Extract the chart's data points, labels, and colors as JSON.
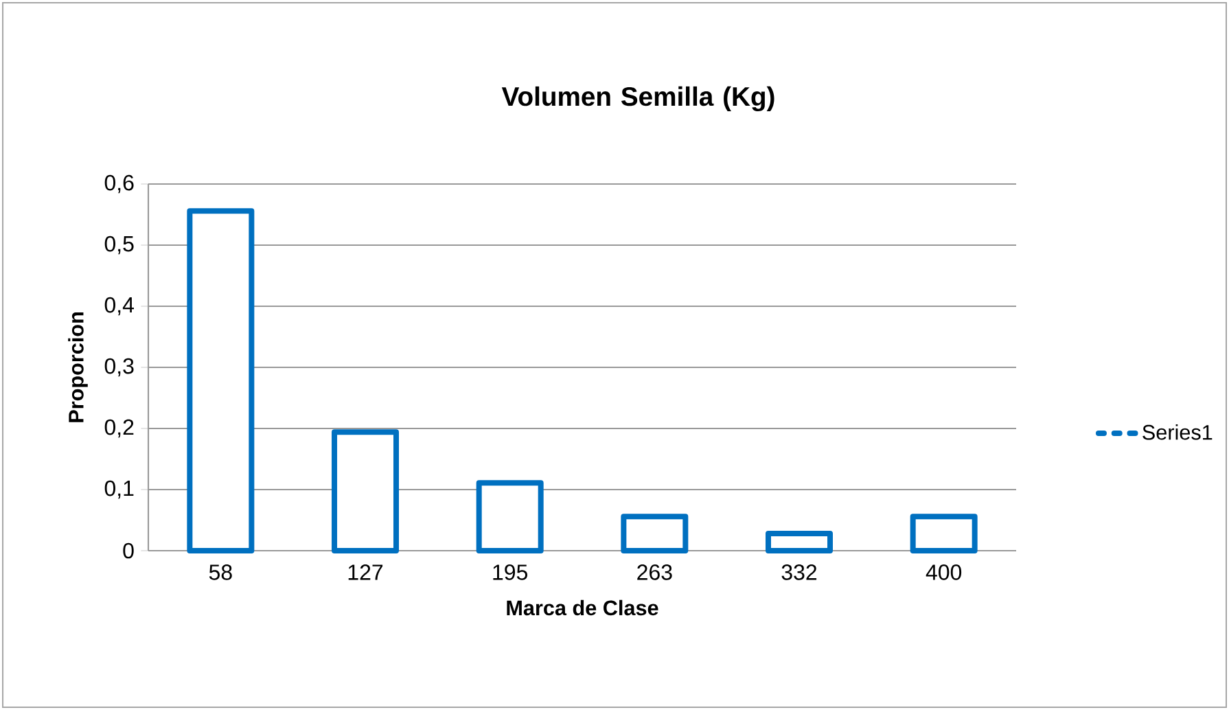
{
  "chart_data": {
    "type": "bar",
    "title": "Volumen Semilla (Kg)",
    "xlabel": "Marca de Clase",
    "ylabel": "Proporcion",
    "categories": [
      "58",
      "127",
      "195",
      "263",
      "332",
      "400"
    ],
    "series": [
      {
        "name": "Series1",
        "color": "#0070c0",
        "values": [
          0.556,
          0.194,
          0.111,
          0.056,
          0.028,
          0.056
        ]
      }
    ],
    "ylim": [
      0,
      0.6
    ],
    "yticks": [
      {
        "value": 0,
        "label": "0"
      },
      {
        "value": 0.1,
        "label": "0,1"
      },
      {
        "value": 0.2,
        "label": "0,2"
      },
      {
        "value": 0.3,
        "label": "0,3"
      },
      {
        "value": 0.4,
        "label": "0,4"
      },
      {
        "value": 0.5,
        "label": "0,5"
      },
      {
        "value": 0.6,
        "label": "0,6"
      }
    ],
    "grid": "y",
    "legend": "right"
  }
}
